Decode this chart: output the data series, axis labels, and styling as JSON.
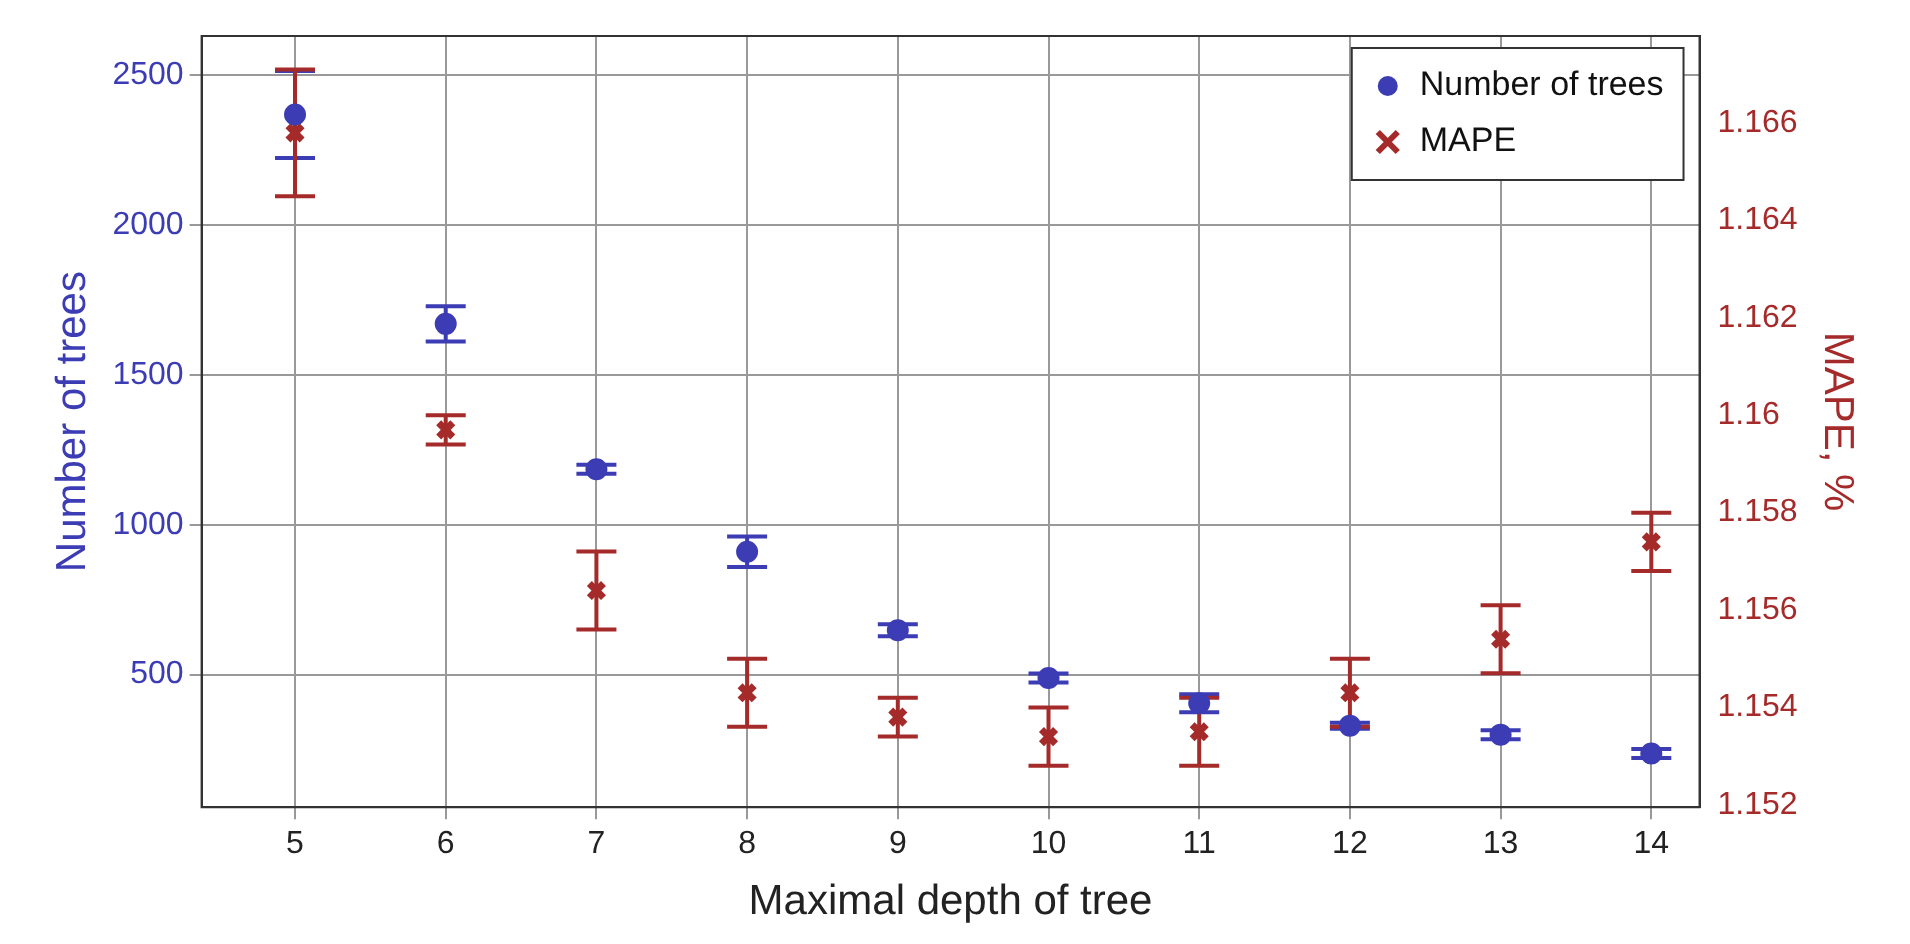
{
  "chart_data": {
    "type": "scatter",
    "xlabel": "Maximal depth of tree",
    "ylabel": "Number of trees",
    "y2label": "MAPE, %",
    "x": [
      5,
      6,
      7,
      8,
      9,
      10,
      11,
      12,
      13,
      14
    ],
    "series": [
      {
        "name": "Number of trees",
        "color": "#3c3cb4",
        "marker": "circle",
        "values": [
          2368,
          1670,
          1185,
          910,
          648,
          489,
          405,
          330,
          300,
          237
        ],
        "errors": [
          145,
          59,
          15,
          51,
          20,
          15,
          30,
          10,
          15,
          15
        ]
      },
      {
        "name": "MAPE",
        "color": "#a52a2a",
        "marker": "cross",
        "axis": "y2",
        "values": [
          1.1658,
          1.1597,
          1.1564,
          1.1543,
          1.1538,
          1.1534,
          1.1535,
          1.1543,
          1.1554,
          1.1574
        ],
        "errors": [
          0.0013,
          0.0003,
          0.0008,
          0.0007,
          0.0004,
          0.0006,
          0.0007,
          0.0007,
          0.0007,
          0.0006
        ]
      }
    ],
    "xlim": [
      4.38,
      14.32
    ],
    "xticks": [
      5,
      6,
      7,
      8,
      9,
      10,
      11,
      12,
      13,
      14
    ],
    "ylim": [
      58,
      2630
    ],
    "yticks": [
      500,
      1000,
      1500,
      2000,
      2500
    ],
    "y2lim": [
      1.15195,
      1.16779
    ],
    "y2ticks": [
      1.152,
      1.154,
      1.156,
      1.158,
      {
        "value": 1.16,
        "label": "1.16"
      },
      1.162,
      1.164,
      1.166
    ],
    "grid": true,
    "legend": "top right"
  }
}
